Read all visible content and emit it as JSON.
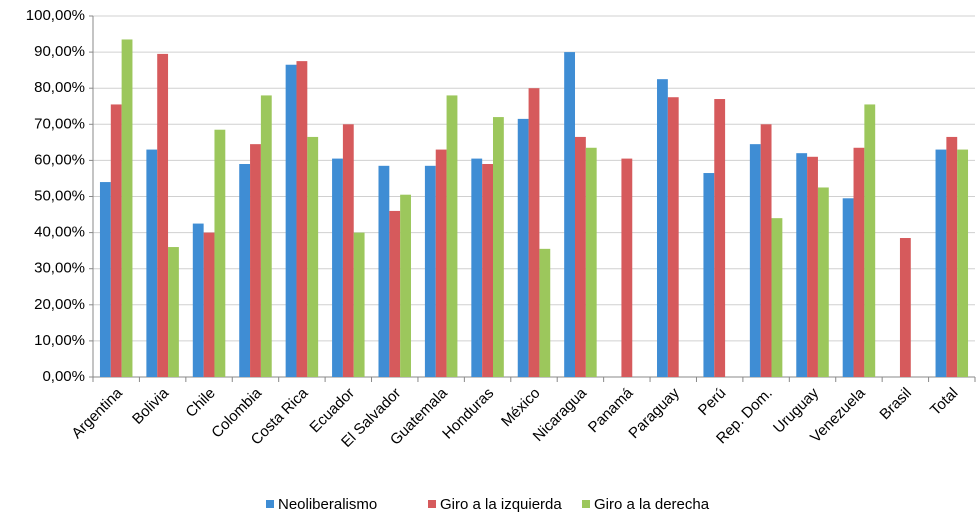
{
  "chart_data": {
    "type": "bar",
    "categories": [
      "Argentina",
      "Bolivia",
      "Chile",
      "Colombia",
      "Costa Rica",
      "Ecuador",
      "El Salvador",
      "Guatemala",
      "Honduras",
      "México",
      "Nicaragua",
      "Panamá",
      "Paraguay",
      "Perú",
      "Rep. Dom.",
      "Uruguay",
      "Venezuela",
      "Brasil",
      "Total"
    ],
    "series": [
      {
        "name": "Neoliberalismo",
        "color": "#3f8dd4",
        "values": [
          54,
          63,
          42.5,
          59,
          86.5,
          60.5,
          58.5,
          58.5,
          60.5,
          71.5,
          90,
          null,
          82.5,
          56.5,
          64.5,
          62,
          49.5,
          null,
          63
        ]
      },
      {
        "name": "Giro a la izquierda",
        "color": "#d65a5c",
        "values": [
          75.5,
          89.5,
          40,
          64.5,
          87.5,
          70,
          46,
          63,
          59,
          80,
          66.5,
          60.5,
          77.5,
          77,
          70,
          61,
          63.5,
          38.5,
          66.5
        ]
      },
      {
        "name": "Giro a la derecha",
        "color": "#9cc75c",
        "values": [
          93.5,
          36,
          68.5,
          78,
          66.5,
          40,
          50.5,
          78,
          72,
          35.5,
          63.5,
          null,
          null,
          null,
          44,
          52.5,
          75.5,
          null,
          63
        ]
      }
    ],
    "ylim": [
      0,
      100
    ],
    "yticks": [
      {
        "value": 0,
        "label": "0,00%"
      },
      {
        "value": 10,
        "label": "10,00%"
      },
      {
        "value": 20,
        "label": "20,00%"
      },
      {
        "value": 30,
        "label": "30,00%"
      },
      {
        "value": 40,
        "label": "40,00%"
      },
      {
        "value": 50,
        "label": "50,00%"
      },
      {
        "value": 60,
        "label": "60,00%"
      },
      {
        "value": 70,
        "label": "70,00%"
      },
      {
        "value": 80,
        "label": "80,00%"
      },
      {
        "value": 90,
        "label": "90,00%"
      },
      {
        "value": 100,
        "label": "100,00%"
      }
    ],
    "grid": true,
    "legend": "bottom"
  }
}
